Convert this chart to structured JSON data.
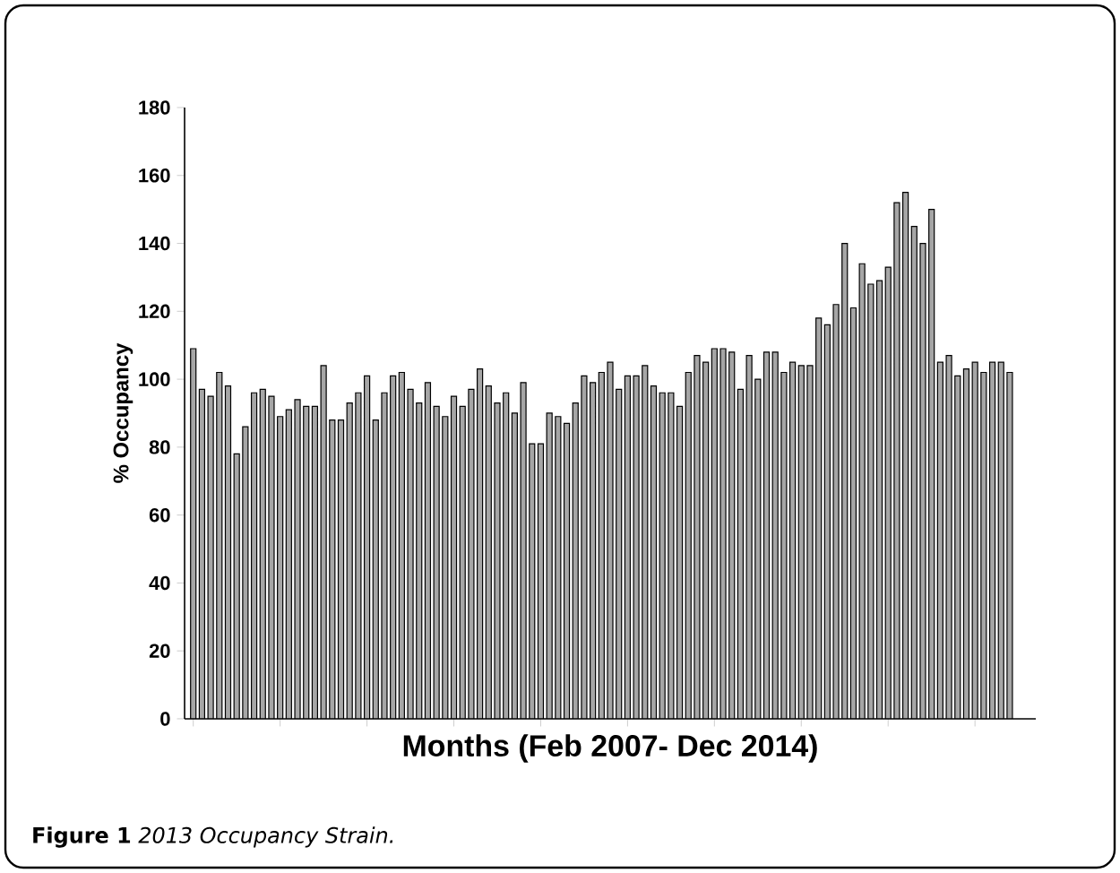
{
  "chart_data": {
    "type": "bar",
    "xlabel": "Months (Feb 2007- Dec 2014)",
    "ylabel": "% Occupancy",
    "categories": [
      null,
      null,
      null,
      null,
      null,
      null,
      null,
      null,
      null,
      null,
      null,
      null,
      null,
      null,
      null,
      null,
      null,
      null,
      null,
      null,
      null,
      null,
      null,
      null,
      null,
      null,
      null,
      null,
      null,
      null,
      null,
      null,
      null,
      null,
      null,
      null,
      null,
      null,
      null,
      null,
      null,
      null,
      null,
      null,
      null,
      null,
      null,
      null,
      null,
      null,
      null,
      null,
      null,
      null,
      null,
      null,
      null,
      null,
      null,
      null,
      null,
      null,
      null,
      null,
      null,
      null,
      null,
      null,
      null,
      null,
      null,
      null,
      null,
      null,
      null,
      null,
      null,
      null,
      null,
      null,
      null,
      null,
      null,
      null,
      null,
      null,
      null,
      null,
      null,
      null,
      null,
      null,
      null,
      null,
      null
    ],
    "values": [
      109,
      97,
      95,
      102,
      98,
      78,
      86,
      96,
      97,
      95,
      89,
      91,
      94,
      92,
      92,
      104,
      88,
      88,
      93,
      96,
      101,
      88,
      96,
      101,
      102,
      97,
      93,
      99,
      92,
      89,
      95,
      92,
      97,
      103,
      98,
      93,
      96,
      90,
      99,
      81,
      81,
      90,
      89,
      87,
      93,
      101,
      99,
      102,
      105,
      97,
      101,
      101,
      104,
      98,
      96,
      96,
      92,
      102,
      107,
      105,
      109,
      109,
      108,
      97,
      107,
      100,
      108,
      108,
      102,
      105,
      104,
      104,
      118,
      116,
      122,
      140,
      121,
      134,
      128,
      129,
      133,
      152,
      155,
      145,
      140,
      150,
      105,
      107,
      101,
      103,
      105,
      102,
      105,
      105,
      102
    ],
    "color": "#a6a6a6",
    "ylim": [
      0,
      180
    ],
    "yticks": [
      0,
      20,
      40,
      60,
      80,
      100,
      120,
      140,
      160,
      180
    ],
    "annotations": [
      "**Figure 1** *2013 Occupancy Strain.*"
    ]
  }
}
